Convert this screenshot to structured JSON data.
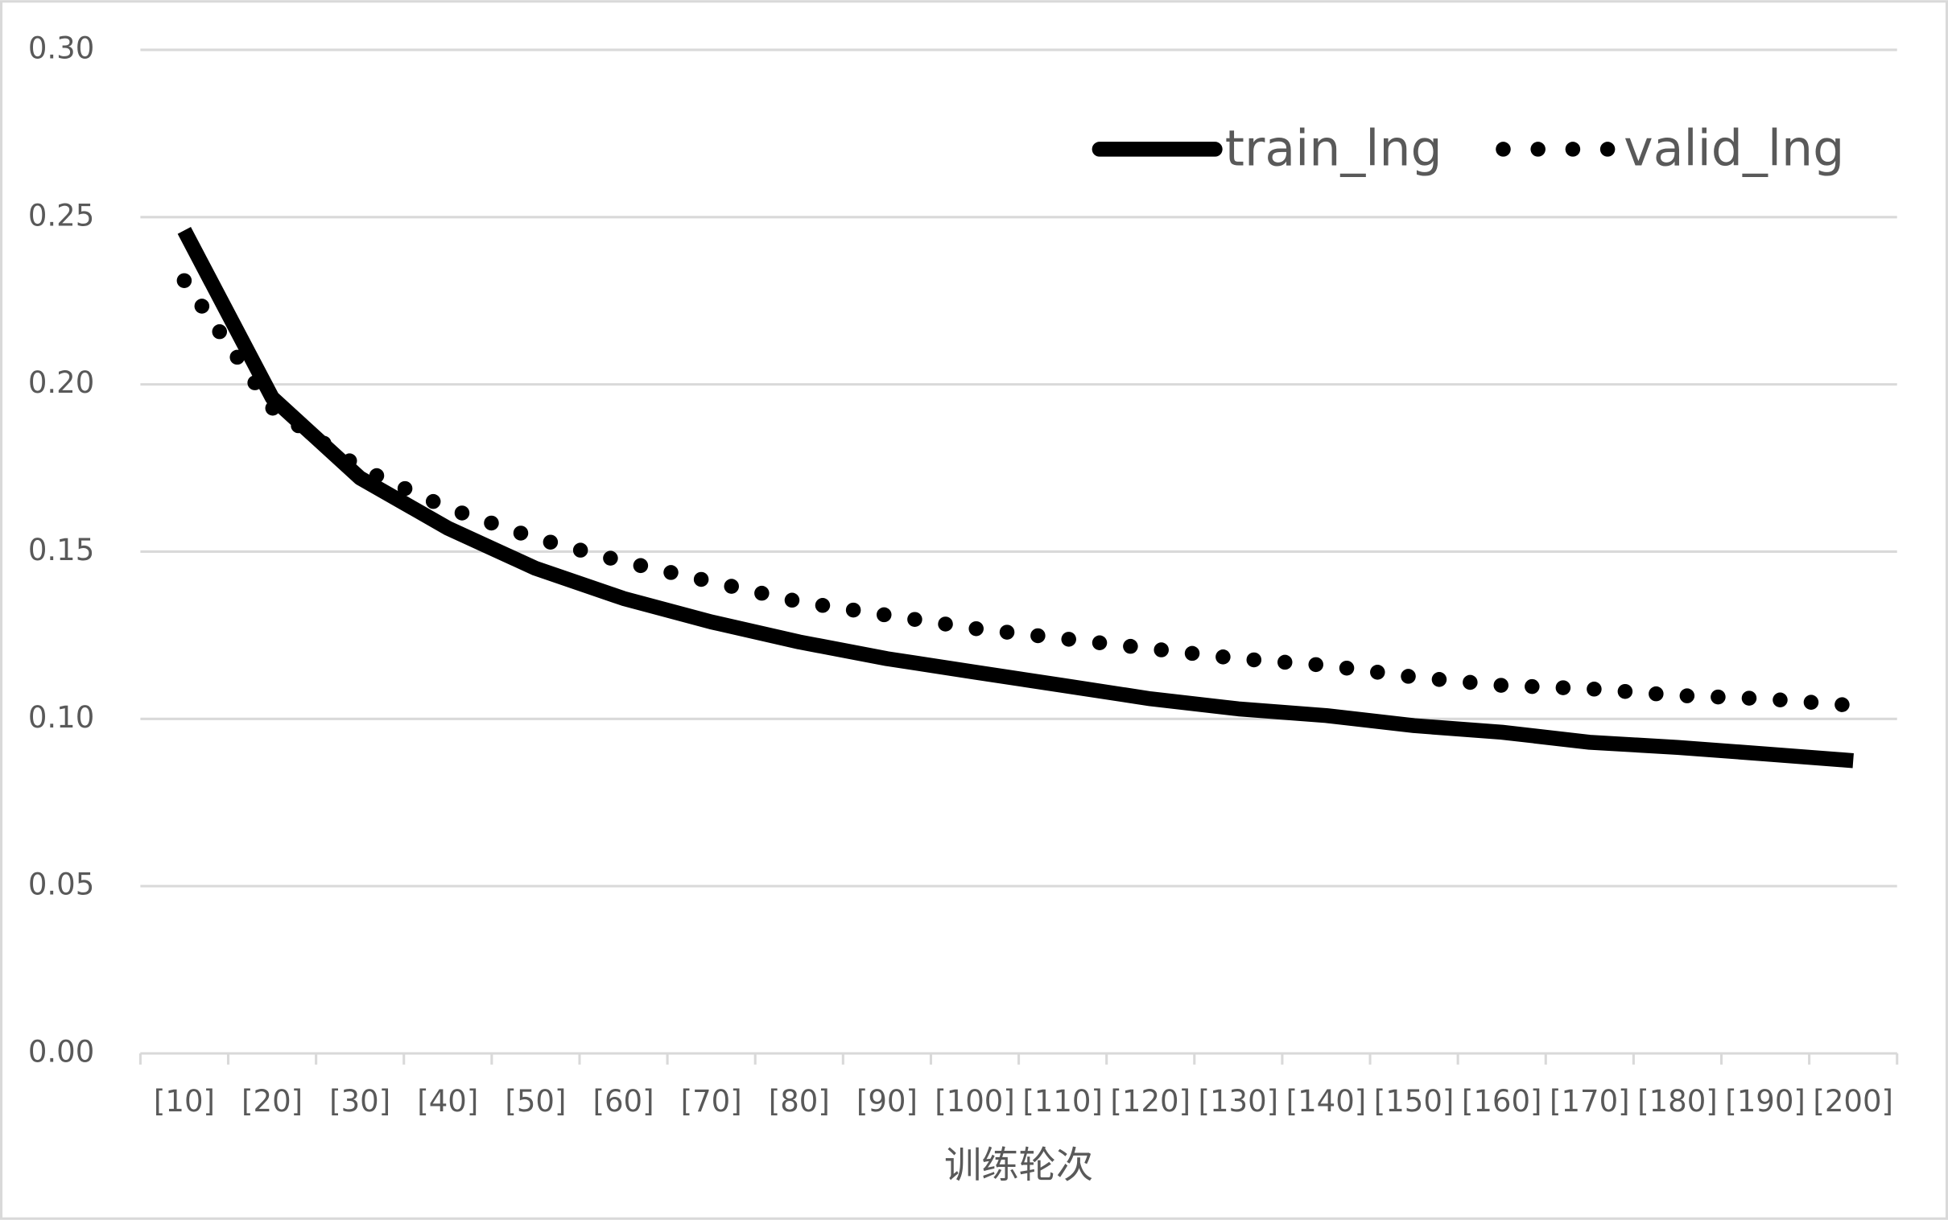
{
  "chart_data": {
    "type": "line",
    "x_label": "训练轮次",
    "categories": [
      "[10]",
      "[20]",
      "[30]",
      "[40]",
      "[50]",
      "[60]",
      "[70]",
      "[80]",
      "[90]",
      "[100]",
      "[110]",
      "[120]",
      "[130]",
      "[140]",
      "[150]",
      "[160]",
      "[170]",
      "[180]",
      "[190]",
      "[200]"
    ],
    "series": [
      {
        "name": "train_lng",
        "color": "#000000",
        "style": "solid",
        "values": [
          0.246,
          0.196,
          0.172,
          0.157,
          0.145,
          0.136,
          0.129,
          0.123,
          0.118,
          0.114,
          0.11,
          0.106,
          0.103,
          0.101,
          0.098,
          0.096,
          0.093,
          0.0915,
          0.0895,
          0.0875
        ]
      },
      {
        "name": "valid_lng",
        "color": "#000000",
        "style": "dotted",
        "values": [
          0.231,
          0.193,
          0.175,
          0.163,
          0.154,
          0.147,
          0.141,
          0.135,
          0.131,
          0.127,
          0.124,
          0.121,
          0.118,
          0.116,
          0.1125,
          0.11,
          0.109,
          0.107,
          0.106,
          0.104
        ]
      }
    ],
    "ylim": [
      0,
      0.3
    ],
    "yticks": [
      {
        "value": 0,
        "label": "0.00"
      },
      {
        "value": 0.05,
        "label": "0.05"
      },
      {
        "value": 0.1,
        "label": "0.10"
      },
      {
        "value": 0.15,
        "label": "0.15"
      },
      {
        "value": 0.2,
        "label": "0.20"
      },
      {
        "value": 0.25,
        "label": "0.25"
      },
      {
        "value": 0.3,
        "label": "0.30"
      }
    ],
    "grid": true,
    "legend": "top-right"
  }
}
